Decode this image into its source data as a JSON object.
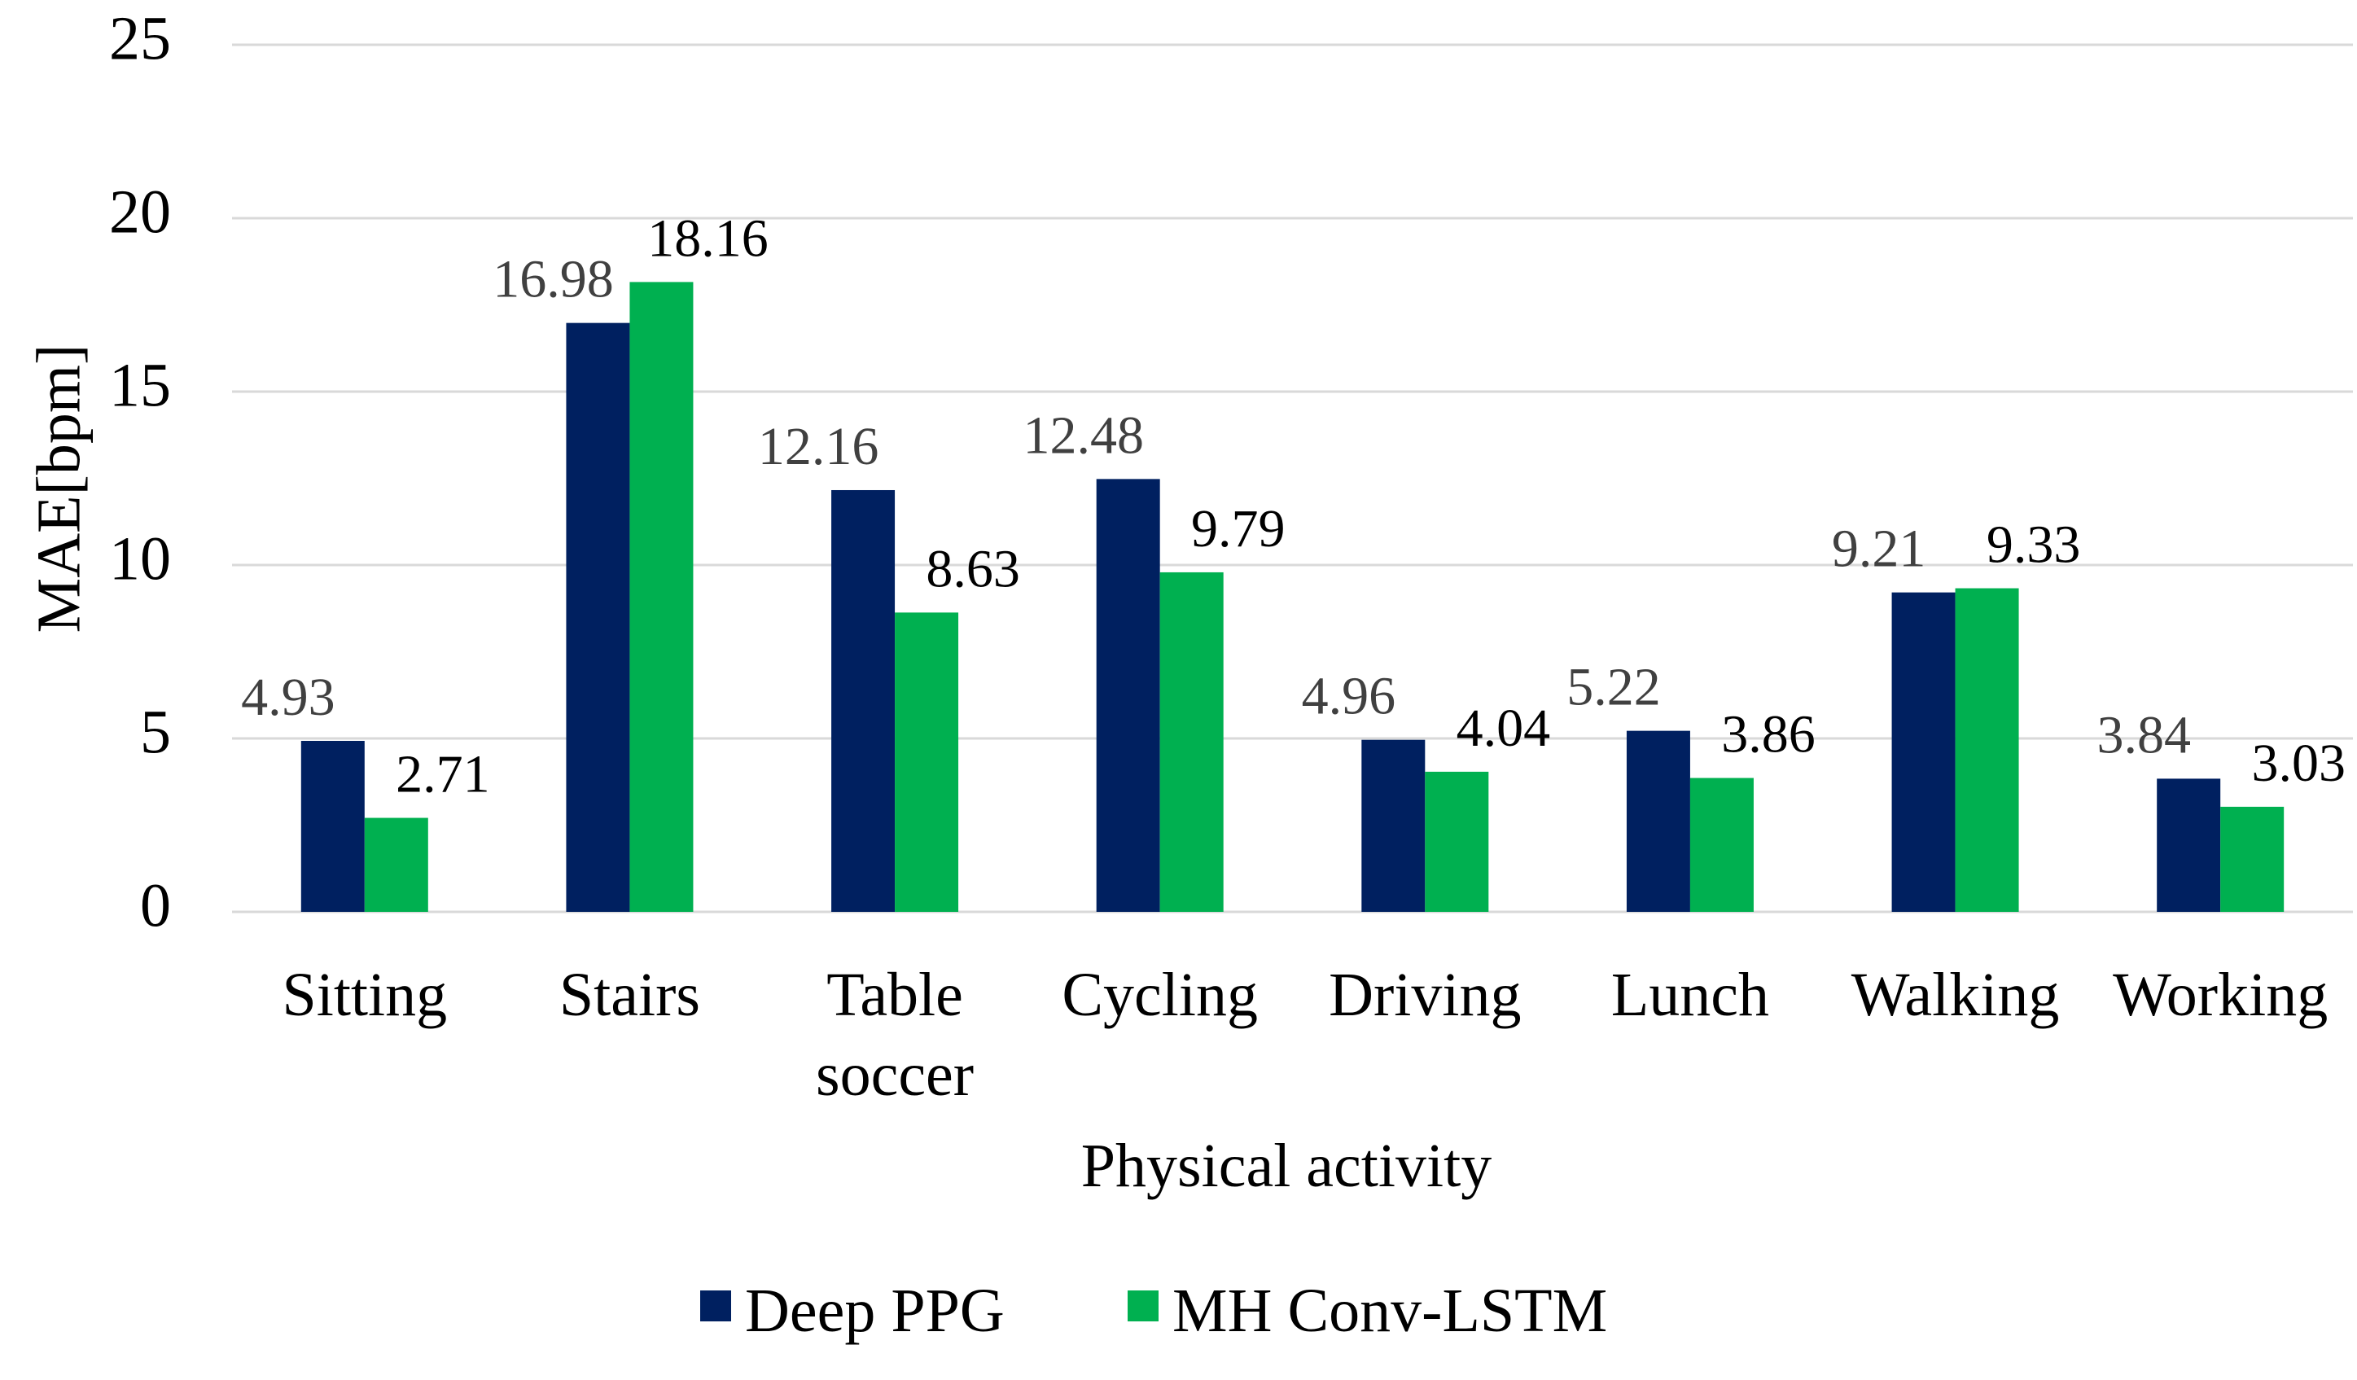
{
  "chart_data": {
    "type": "bar",
    "title": "",
    "xlabel": "Physical activity",
    "ylabel": "MAE[bpm]",
    "ylim": [
      0,
      25
    ],
    "yticks": [
      0,
      5,
      10,
      15,
      20,
      25
    ],
    "grid": true,
    "legend_position": "bottom",
    "categories": [
      [
        "Sitting"
      ],
      [
        "Stairs"
      ],
      [
        "Table",
        "soccer"
      ],
      [
        "Cycling"
      ],
      [
        "Driving"
      ],
      [
        "Lunch"
      ],
      [
        "Walking"
      ],
      [
        "Working"
      ]
    ],
    "series": [
      {
        "name": "Deep PPG",
        "color": "#002060",
        "label_color": "#404040",
        "values": [
          4.93,
          16.98,
          12.16,
          12.48,
          4.96,
          5.22,
          9.21,
          3.84
        ]
      },
      {
        "name": "MH Conv-LSTM",
        "color": "#00b050",
        "label_color": "#000000",
        "values": [
          2.71,
          18.16,
          8.63,
          9.79,
          4.04,
          3.86,
          9.33,
          3.03
        ]
      }
    ]
  }
}
